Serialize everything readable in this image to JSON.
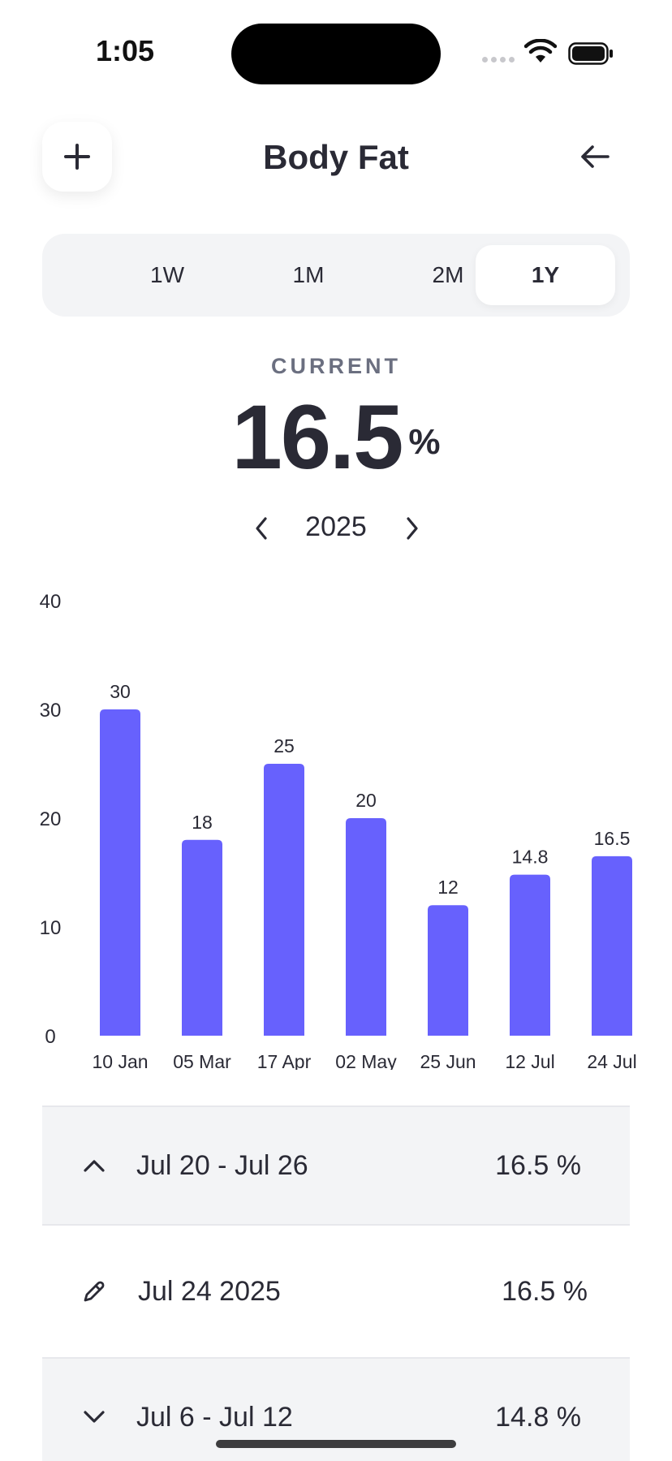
{
  "status": {
    "time": "1:05"
  },
  "header": {
    "title": "Body Fat",
    "add_icon": "plus-icon",
    "back_icon": "arrow-left-icon"
  },
  "ranges": [
    {
      "label": "1W",
      "active": false
    },
    {
      "label": "1M",
      "active": false
    },
    {
      "label": "2M",
      "active": false
    },
    {
      "label": "1Y",
      "active": true
    }
  ],
  "current": {
    "label": "CURRENT",
    "value": "16.5",
    "unit": "%"
  },
  "year_nav": {
    "year": "2025",
    "prev_icon": "chevron-left-icon",
    "next_icon": "chevron-right-icon"
  },
  "colors": {
    "accent": "#6761fd",
    "text": "#2a2a35",
    "muted": "#6b6f80",
    "surface": "#f3f4f6"
  },
  "chart_data": {
    "type": "bar",
    "categories": [
      "10 Jan",
      "05 Mar",
      "17 Apr",
      "02 May",
      "25 Jun",
      "12 Jul",
      "24 Jul"
    ],
    "values": [
      30,
      18,
      25,
      20,
      12,
      14.8,
      16.5
    ],
    "value_labels": [
      "30",
      "18",
      "25",
      "20",
      "12",
      "14.8",
      "16.5"
    ],
    "yticks": [
      "0",
      "10",
      "20",
      "30",
      "40"
    ],
    "ylim": [
      0,
      40
    ],
    "grid": false,
    "title": "",
    "xlabel": "",
    "ylabel": ""
  },
  "list": [
    {
      "kind": "group",
      "icon": "chevron-up-icon",
      "label": "Jul 20 - Jul 26",
      "value": "16.5 %"
    },
    {
      "kind": "entry",
      "icon": "pencil-icon",
      "label": "Jul 24 2025",
      "value": "16.5 %"
    },
    {
      "kind": "group",
      "icon": "chevron-down-icon",
      "label": "Jul 6 - Jul 12",
      "value": "14.8 %"
    }
  ]
}
